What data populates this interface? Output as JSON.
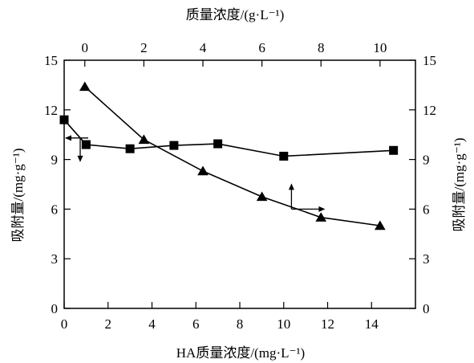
{
  "chart_data": {
    "type": "line",
    "xlabel_bottom": "HA质量浓度/(mg·L⁻¹)",
    "xlabel_top": "质量浓度/(g·L⁻¹)",
    "ylabel_left": "吸附量/(mg·g⁻¹)",
    "ylabel_right": "吸附量/(mg·g⁻¹)",
    "x_bottom_range": [
      0,
      16
    ],
    "x_bottom_ticks": [
      0,
      2,
      4,
      6,
      8,
      10,
      12,
      14
    ],
    "x_top_range": [
      -0.7,
      11.2
    ],
    "x_top_ticks": [
      0,
      2,
      4,
      6,
      8,
      10
    ],
    "ylim": [
      0,
      15
    ],
    "y_ticks": [
      0,
      3,
      6,
      9,
      12,
      15
    ],
    "series": [
      {
        "marker": "square",
        "x_axis": "bottom",
        "y_axis": "left",
        "x": [
          0,
          1,
          3,
          5,
          7,
          10,
          15
        ],
        "y": [
          11.4,
          9.9,
          9.65,
          9.85,
          9.95,
          9.2,
          9.55
        ]
      },
      {
        "marker": "triangle",
        "x_axis": "top",
        "y_axis": "right",
        "x": [
          0,
          2,
          4,
          6,
          8,
          10
        ],
        "y": [
          13.4,
          10.2,
          8.3,
          6.75,
          5.5,
          5.0
        ]
      }
    ],
    "annotations": [
      {
        "type": "arrow",
        "from_series": 0,
        "x": 0,
        "y": 10.3,
        "direction": "down"
      },
      {
        "type": "arrow",
        "from_series": 1,
        "x": 7,
        "y": 6.0,
        "direction": "up-right"
      }
    ]
  }
}
